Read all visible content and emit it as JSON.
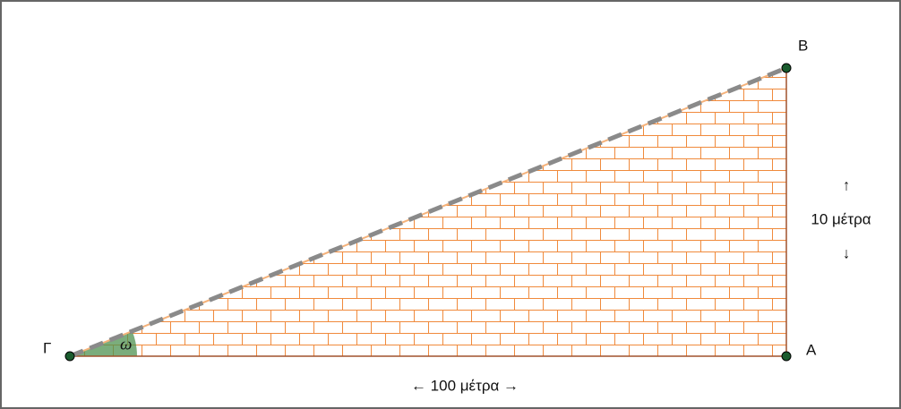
{
  "points": [
    {
      "label": "B"
    },
    {
      "label": "A"
    },
    {
      "label": "Γ"
    }
  ],
  "angle": {
    "label": "ω"
  },
  "height_label": {
    "up": "↑",
    "text": "10 μέτρα",
    "down": "↓"
  },
  "base_label": "← 100 μέτρα →"
}
